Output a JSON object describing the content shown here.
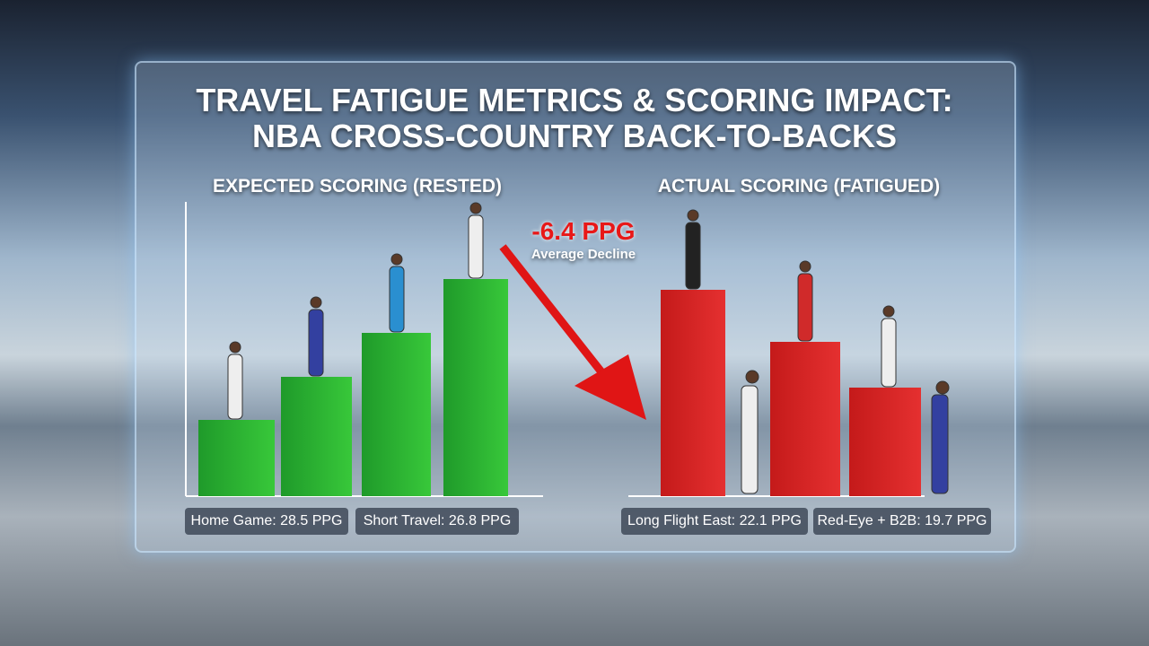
{
  "title": {
    "line1": "TRAVEL FATIGUE METRICS & SCORING IMPACT:",
    "line2": "NBA CROSS-COUNTRY BACK-TO-BACKS"
  },
  "left_panel": {
    "heading": "EXPECTED SCORING (RESTED)",
    "labels": [
      "Home Game: 28.5 PPG",
      "Short Travel: 26.8 PPG"
    ]
  },
  "callout": {
    "value": "-6.4 PPG",
    "label": "Average Decline"
  },
  "right_panel": {
    "heading": "ACTUAL SCORING (FATIGUED)",
    "labels": [
      "Long Flight East: 22.1 PPG",
      "Red-Eye + B2B: 19.7 PPG"
    ]
  }
}
